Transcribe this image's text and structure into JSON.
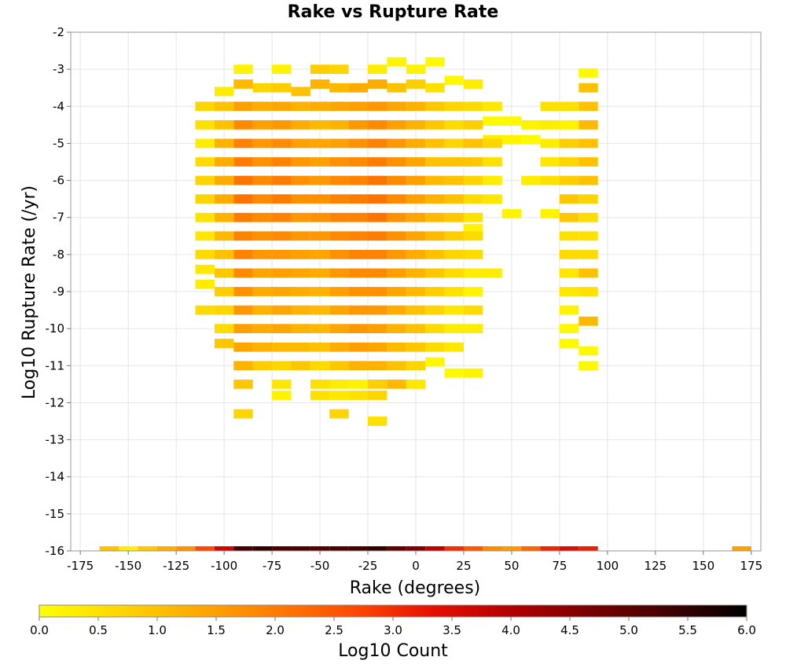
{
  "chart_data": {
    "type": "heatmap",
    "title": "Rake vs Rupture Rate",
    "xlabel": "Rake (degrees)",
    "ylabel": "Log10 Rupture Rate (/yr)",
    "colorbar_label": "Log10 Count",
    "xlim": [
      -180,
      180
    ],
    "ylim": [
      -16,
      -2
    ],
    "xticks": [
      -175,
      -150,
      -125,
      -100,
      -75,
      -50,
      -25,
      0,
      25,
      50,
      75,
      100,
      125,
      150,
      175
    ],
    "yticks": [
      -2,
      -3,
      -4,
      -5,
      -6,
      -7,
      -8,
      -9,
      -10,
      -11,
      -12,
      -13,
      -14,
      -15,
      -16
    ],
    "colorbar_ticks": [
      "0.0",
      "0.5",
      "1.0",
      "1.5",
      "2.0",
      "2.5",
      "3.0",
      "3.5",
      "4.0",
      "4.5",
      "5.0",
      "5.5",
      "6.0"
    ],
    "color_range": [
      0,
      6
    ],
    "colormap": [
      "#ffff00",
      "#ffd700",
      "#ffaa00",
      "#ff7c00",
      "#ff4a00",
      "#e81000",
      "#b30000",
      "#7a0000",
      "#420000",
      "#000000"
    ],
    "grid": true,
    "bin_width_x": 10,
    "bin_height_y": 0.25,
    "bins": [
      [
        -90,
        -3.0,
        0.2
      ],
      [
        -70,
        -3.0,
        0.2
      ],
      [
        -50,
        -3.0,
        0.8
      ],
      [
        -40,
        -3.0,
        0.7
      ],
      [
        -20,
        -3.0,
        0.3
      ],
      [
        -10,
        -2.8,
        0.2
      ],
      [
        0,
        -3.0,
        0.2
      ],
      [
        10,
        -2.8,
        0.1
      ],
      [
        -100,
        -3.6,
        0.3
      ],
      [
        -90,
        -3.4,
        1.1
      ],
      [
        -80,
        -3.5,
        0.7
      ],
      [
        -70,
        -3.5,
        0.8
      ],
      [
        -60,
        -3.6,
        1.0
      ],
      [
        -50,
        -3.4,
        1.2
      ],
      [
        -40,
        -3.5,
        1.1
      ],
      [
        -30,
        -3.5,
        1.3
      ],
      [
        -20,
        -3.4,
        1.3
      ],
      [
        -10,
        -3.5,
        1.0
      ],
      [
        0,
        -3.4,
        0.8
      ],
      [
        10,
        -3.5,
        0.5
      ],
      [
        20,
        -3.3,
        0.1
      ],
      [
        30,
        -3.4,
        0.3
      ],
      [
        90,
        -3.1,
        0.1
      ],
      [
        90,
        -3.5,
        1.0
      ],
      [
        -110,
        -4.0,
        0.7
      ],
      [
        -100,
        -4.0,
        1.0
      ],
      [
        -90,
        -4.0,
        1.5
      ],
      [
        -80,
        -4.0,
        1.3
      ],
      [
        -70,
        -4.0,
        1.4
      ],
      [
        -60,
        -4.0,
        1.2
      ],
      [
        -50,
        -4.0,
        1.3
      ],
      [
        -40,
        -4.0,
        1.4
      ],
      [
        -30,
        -4.0,
        1.5
      ],
      [
        -20,
        -4.0,
        1.6
      ],
      [
        -10,
        -4.0,
        1.4
      ],
      [
        0,
        -4.0,
        1.2
      ],
      [
        10,
        -4.0,
        0.9
      ],
      [
        20,
        -4.0,
        0.7
      ],
      [
        30,
        -4.0,
        0.6
      ],
      [
        40,
        -4.0,
        0.4
      ],
      [
        40,
        -4.4,
        0.1
      ],
      [
        50,
        -4.4,
        0.1
      ],
      [
        70,
        -4.0,
        0.5
      ],
      [
        80,
        -4.0,
        0.5
      ],
      [
        90,
        -4.0,
        1.0
      ],
      [
        -110,
        -4.5,
        0.5
      ],
      [
        -100,
        -4.5,
        1.0
      ],
      [
        -90,
        -4.5,
        1.8
      ],
      [
        -80,
        -4.5,
        1.5
      ],
      [
        -70,
        -4.5,
        1.6
      ],
      [
        -60,
        -4.5,
        1.3
      ],
      [
        -50,
        -4.5,
        1.1
      ],
      [
        -40,
        -4.5,
        1.2
      ],
      [
        -30,
        -4.5,
        1.6
      ],
      [
        -20,
        -4.5,
        1.8
      ],
      [
        -10,
        -4.5,
        1.5
      ],
      [
        0,
        -4.5,
        1.2
      ],
      [
        10,
        -4.5,
        0.9
      ],
      [
        20,
        -4.5,
        0.6
      ],
      [
        30,
        -4.5,
        0.8
      ],
      [
        40,
        -4.9,
        0.3
      ],
      [
        50,
        -4.9,
        0.2
      ],
      [
        60,
        -4.9,
        0.1
      ],
      [
        60,
        -4.5,
        0.2
      ],
      [
        70,
        -4.5,
        0.3
      ],
      [
        80,
        -4.5,
        0.2
      ],
      [
        90,
        -4.5,
        1.1
      ],
      [
        -110,
        -5.0,
        0.3
      ],
      [
        -100,
        -5.0,
        1.2
      ],
      [
        -90,
        -5.0,
        1.9
      ],
      [
        -80,
        -5.0,
        1.6
      ],
      [
        -70,
        -5.0,
        1.8
      ],
      [
        -60,
        -5.0,
        1.5
      ],
      [
        -50,
        -5.0,
        1.4
      ],
      [
        -40,
        -5.0,
        1.5
      ],
      [
        -30,
        -5.0,
        1.7
      ],
      [
        -20,
        -5.0,
        1.9
      ],
      [
        -10,
        -5.0,
        1.6
      ],
      [
        0,
        -5.0,
        1.3
      ],
      [
        10,
        -5.0,
        1.0
      ],
      [
        20,
        -5.0,
        0.7
      ],
      [
        30,
        -5.0,
        1.0
      ],
      [
        40,
        -5.0,
        0.7
      ],
      [
        70,
        -5.0,
        0.3
      ],
      [
        80,
        -5.0,
        0.8
      ],
      [
        90,
        -5.0,
        1.0
      ],
      [
        -110,
        -5.5,
        0.6
      ],
      [
        -100,
        -5.5,
        1.3
      ],
      [
        -90,
        -5.5,
        2.0
      ],
      [
        -80,
        -5.5,
        1.7
      ],
      [
        -70,
        -5.5,
        1.9
      ],
      [
        -60,
        -5.5,
        1.6
      ],
      [
        -50,
        -5.5,
        1.5
      ],
      [
        -40,
        -5.5,
        1.7
      ],
      [
        -30,
        -5.5,
        1.8
      ],
      [
        -20,
        -5.5,
        2.0
      ],
      [
        -10,
        -5.5,
        1.7
      ],
      [
        0,
        -5.5,
        1.4
      ],
      [
        10,
        -5.5,
        1.0
      ],
      [
        20,
        -5.5,
        1.0
      ],
      [
        30,
        -5.5,
        0.9
      ],
      [
        40,
        -5.5,
        0.5
      ],
      [
        70,
        -5.5,
        0.4
      ],
      [
        80,
        -5.5,
        0.7
      ],
      [
        90,
        -5.5,
        1.0
      ],
      [
        -110,
        -6.0,
        0.7
      ],
      [
        -100,
        -6.0,
        1.3
      ],
      [
        -90,
        -6.0,
        2.1
      ],
      [
        -80,
        -6.0,
        1.8
      ],
      [
        -70,
        -6.0,
        2.0
      ],
      [
        -60,
        -6.0,
        1.7
      ],
      [
        -50,
        -6.0,
        1.6
      ],
      [
        -40,
        -6.0,
        1.8
      ],
      [
        -30,
        -6.0,
        1.9
      ],
      [
        -20,
        -6.0,
        2.1
      ],
      [
        -10,
        -6.0,
        1.8
      ],
      [
        0,
        -6.0,
        1.5
      ],
      [
        10,
        -6.0,
        1.1
      ],
      [
        20,
        -6.0,
        1.0
      ],
      [
        30,
        -6.0,
        0.7
      ],
      [
        40,
        -6.0,
        0.3
      ],
      [
        60,
        -6.0,
        0.3
      ],
      [
        70,
        -6.0,
        0.5
      ],
      [
        80,
        -6.0,
        0.8
      ],
      [
        90,
        -6.0,
        1.0
      ],
      [
        -110,
        -6.5,
        0.7
      ],
      [
        -100,
        -6.5,
        1.3
      ],
      [
        -90,
        -6.5,
        2.1
      ],
      [
        -80,
        -6.5,
        1.8
      ],
      [
        -70,
        -6.5,
        2.0
      ],
      [
        -60,
        -6.5,
        1.7
      ],
      [
        -50,
        -6.5,
        1.7
      ],
      [
        -40,
        -6.5,
        1.9
      ],
      [
        -30,
        -6.5,
        2.0
      ],
      [
        -20,
        -6.5,
        2.1
      ],
      [
        -10,
        -6.5,
        1.8
      ],
      [
        0,
        -6.5,
        1.5
      ],
      [
        10,
        -6.5,
        1.2
      ],
      [
        20,
        -6.5,
        1.0
      ],
      [
        30,
        -6.5,
        0.6
      ],
      [
        40,
        -6.5,
        0.4
      ],
      [
        80,
        -6.5,
        0.9
      ],
      [
        90,
        -6.5,
        0.7
      ],
      [
        -110,
        -7.0,
        0.5
      ],
      [
        -100,
        -7.0,
        1.2
      ],
      [
        -90,
        -7.0,
        2.0
      ],
      [
        -80,
        -7.0,
        1.8
      ],
      [
        -70,
        -7.0,
        1.9
      ],
      [
        -60,
        -7.0,
        1.6
      ],
      [
        -50,
        -7.0,
        1.7
      ],
      [
        -40,
        -7.0,
        1.9
      ],
      [
        -30,
        -7.0,
        1.9
      ],
      [
        -20,
        -7.0,
        2.1
      ],
      [
        -10,
        -7.0,
        1.7
      ],
      [
        0,
        -7.0,
        1.4
      ],
      [
        10,
        -7.0,
        1.1
      ],
      [
        20,
        -7.0,
        0.9
      ],
      [
        30,
        -7.0,
        0.5
      ],
      [
        30,
        -7.3,
        0.2
      ],
      [
        50,
        -6.9,
        0.2
      ],
      [
        70,
        -6.9,
        0.2
      ],
      [
        80,
        -7.0,
        0.9
      ],
      [
        90,
        -7.0,
        0.6
      ],
      [
        -110,
        -7.5,
        0.4
      ],
      [
        -100,
        -7.5,
        1.1
      ],
      [
        -90,
        -7.5,
        1.9
      ],
      [
        -80,
        -7.5,
        1.7
      ],
      [
        -70,
        -7.5,
        1.8
      ],
      [
        -60,
        -7.5,
        1.6
      ],
      [
        -50,
        -7.5,
        1.6
      ],
      [
        -40,
        -7.5,
        1.8
      ],
      [
        -30,
        -7.5,
        1.9
      ],
      [
        -20,
        -7.5,
        2.0
      ],
      [
        -10,
        -7.5,
        1.7
      ],
      [
        0,
        -7.5,
        1.4
      ],
      [
        10,
        -7.5,
        1.1
      ],
      [
        20,
        -7.5,
        0.8
      ],
      [
        30,
        -7.5,
        0.6
      ],
      [
        80,
        -7.5,
        0.5
      ],
      [
        90,
        -7.5,
        0.5
      ],
      [
        -110,
        -8.0,
        0.6
      ],
      [
        -100,
        -8.0,
        1.0
      ],
      [
        -90,
        -8.0,
        1.9
      ],
      [
        -80,
        -8.0,
        1.6
      ],
      [
        -70,
        -8.0,
        1.6
      ],
      [
        -60,
        -8.0,
        1.5
      ],
      [
        -50,
        -8.0,
        1.4
      ],
      [
        -40,
        -8.0,
        1.7
      ],
      [
        -30,
        -8.0,
        1.9
      ],
      [
        -20,
        -8.0,
        1.9
      ],
      [
        -10,
        -8.0,
        1.6
      ],
      [
        0,
        -8.0,
        1.3
      ],
      [
        10,
        -8.0,
        1.0
      ],
      [
        20,
        -8.0,
        0.7
      ],
      [
        30,
        -8.0,
        0.6
      ],
      [
        80,
        -8.0,
        0.6
      ],
      [
        90,
        -8.0,
        0.6
      ],
      [
        -110,
        -8.4,
        0.4
      ],
      [
        -100,
        -8.5,
        0.9
      ],
      [
        -90,
        -8.5,
        1.8
      ],
      [
        -80,
        -8.5,
        1.4
      ],
      [
        -70,
        -8.5,
        1.5
      ],
      [
        -60,
        -8.5,
        1.4
      ],
      [
        -50,
        -8.5,
        1.3
      ],
      [
        -40,
        -8.5,
        1.6
      ],
      [
        -30,
        -8.5,
        1.8
      ],
      [
        -20,
        -8.5,
        1.8
      ],
      [
        -10,
        -8.5,
        1.5
      ],
      [
        0,
        -8.5,
        1.2
      ],
      [
        10,
        -8.5,
        0.9
      ],
      [
        20,
        -8.5,
        0.6
      ],
      [
        30,
        -8.5,
        0.3
      ],
      [
        40,
        -8.5,
        0.3
      ],
      [
        80,
        -8.5,
        0.4
      ],
      [
        90,
        -8.5,
        1.0
      ],
      [
        -110,
        -8.8,
        0.3
      ],
      [
        -100,
        -9.0,
        0.8
      ],
      [
        -90,
        -9.0,
        1.7
      ],
      [
        -80,
        -9.0,
        1.3
      ],
      [
        -70,
        -9.0,
        1.4
      ],
      [
        -60,
        -9.0,
        1.3
      ],
      [
        -50,
        -9.0,
        1.2
      ],
      [
        -40,
        -9.0,
        1.5
      ],
      [
        -30,
        -9.0,
        1.7
      ],
      [
        -20,
        -9.0,
        1.7
      ],
      [
        -10,
        -9.0,
        1.4
      ],
      [
        0,
        -9.0,
        1.1
      ],
      [
        10,
        -9.0,
        0.8
      ],
      [
        20,
        -9.0,
        0.5
      ],
      [
        30,
        -9.0,
        0.2
      ],
      [
        80,
        -9.0,
        0.4
      ],
      [
        90,
        -9.0,
        0.5
      ],
      [
        -110,
        -9.5,
        0.6
      ],
      [
        -100,
        -9.5,
        0.7
      ],
      [
        -90,
        -9.5,
        1.6
      ],
      [
        -80,
        -9.5,
        1.2
      ],
      [
        -70,
        -9.5,
        1.4
      ],
      [
        -60,
        -9.5,
        1.2
      ],
      [
        -50,
        -9.5,
        1.1
      ],
      [
        -40,
        -9.5,
        1.4
      ],
      [
        -30,
        -9.5,
        1.6
      ],
      [
        -20,
        -9.5,
        1.6
      ],
      [
        -10,
        -9.5,
        1.3
      ],
      [
        0,
        -9.5,
        1.0
      ],
      [
        10,
        -9.5,
        0.7
      ],
      [
        20,
        -9.5,
        0.4
      ],
      [
        30,
        -9.5,
        0.6
      ],
      [
        80,
        -9.5,
        0.2
      ],
      [
        90,
        -9.8,
        1.1
      ],
      [
        -100,
        -10.0,
        0.6
      ],
      [
        -90,
        -10.0,
        1.5
      ],
      [
        -80,
        -10.0,
        1.3
      ],
      [
        -70,
        -10.0,
        1.4
      ],
      [
        -60,
        -10.0,
        1.2
      ],
      [
        -50,
        -10.0,
        1.1
      ],
      [
        -40,
        -10.0,
        1.4
      ],
      [
        -30,
        -10.0,
        1.6
      ],
      [
        -20,
        -10.0,
        1.5
      ],
      [
        -10,
        -10.0,
        1.2
      ],
      [
        0,
        -10.0,
        1.0
      ],
      [
        10,
        -10.0,
        0.6
      ],
      [
        20,
        -10.0,
        0.3
      ],
      [
        30,
        -10.0,
        0.3
      ],
      [
        80,
        -10.0,
        0.1
      ],
      [
        -100,
        -10.4,
        0.9
      ],
      [
        -90,
        -10.5,
        1.4
      ],
      [
        -80,
        -10.5,
        1.2
      ],
      [
        -70,
        -10.5,
        1.1
      ],
      [
        -60,
        -10.5,
        1.1
      ],
      [
        -50,
        -10.5,
        1.0
      ],
      [
        -40,
        -10.5,
        1.3
      ],
      [
        -30,
        -10.5,
        1.5
      ],
      [
        -20,
        -10.5,
        1.4
      ],
      [
        -10,
        -10.5,
        1.1
      ],
      [
        0,
        -10.5,
        0.9
      ],
      [
        10,
        -10.5,
        0.6
      ],
      [
        20,
        -10.5,
        0.4
      ],
      [
        80,
        -10.4,
        0.1
      ],
      [
        90,
        -10.6,
        0.1
      ],
      [
        -90,
        -11.0,
        1.2
      ],
      [
        -80,
        -11.0,
        0.8
      ],
      [
        -70,
        -11.0,
        0.7
      ],
      [
        -60,
        -11.0,
        0.9
      ],
      [
        -50,
        -11.0,
        0.6
      ],
      [
        -40,
        -11.0,
        0.9
      ],
      [
        -30,
        -11.0,
        1.2
      ],
      [
        -20,
        -11.0,
        1.2
      ],
      [
        -10,
        -11.0,
        1.0
      ],
      [
        0,
        -11.0,
        0.7
      ],
      [
        10,
        -10.9,
        0.1
      ],
      [
        20,
        -11.2,
        0.1
      ],
      [
        30,
        -11.2,
        0.2
      ],
      [
        90,
        -11.0,
        0.1
      ],
      [
        -90,
        -11.5,
        0.9
      ],
      [
        -70,
        -11.5,
        0.4
      ],
      [
        -50,
        -11.5,
        0.5
      ],
      [
        -40,
        -11.5,
        0.3
      ],
      [
        -30,
        -11.5,
        0.2
      ],
      [
        -20,
        -11.5,
        0.8
      ],
      [
        -10,
        -11.5,
        1.1
      ],
      [
        0,
        -11.5,
        0.4
      ],
      [
        -70,
        -11.8,
        0.2
      ],
      [
        -50,
        -11.8,
        0.5
      ],
      [
        -40,
        -11.8,
        0.4
      ],
      [
        -30,
        -11.8,
        0.5
      ],
      [
        -20,
        -11.8,
        0.7
      ],
      [
        -90,
        -12.3,
        0.7
      ],
      [
        -40,
        -12.3,
        0.7
      ],
      [
        -20,
        -12.5,
        0.5
      ],
      [
        -160,
        -16.0,
        1.0
      ],
      [
        -150,
        -16.0,
        0.3
      ],
      [
        -140,
        -16.0,
        0.9
      ],
      [
        -130,
        -16.0,
        1.3
      ],
      [
        -120,
        -16.0,
        1.7
      ],
      [
        -110,
        -16.0,
        2.7
      ],
      [
        -100,
        -16.0,
        3.7
      ],
      [
        -90,
        -16.0,
        5.3
      ],
      [
        -80,
        -16.0,
        5.5
      ],
      [
        -70,
        -16.0,
        5.2
      ],
      [
        -60,
        -16.0,
        5.2
      ],
      [
        -50,
        -16.0,
        5.1
      ],
      [
        -40,
        -16.0,
        5.2
      ],
      [
        -30,
        -16.0,
        5.3
      ],
      [
        -20,
        -16.0,
        5.5
      ],
      [
        -10,
        -16.0,
        5.0
      ],
      [
        0,
        -16.0,
        4.6
      ],
      [
        10,
        -16.0,
        3.9
      ],
      [
        20,
        -16.0,
        3.0
      ],
      [
        30,
        -16.0,
        2.5
      ],
      [
        40,
        -16.0,
        1.8
      ],
      [
        50,
        -16.0,
        1.6
      ],
      [
        60,
        -16.0,
        2.3
      ],
      [
        70,
        -16.0,
        3.1
      ],
      [
        80,
        -16.0,
        3.5
      ],
      [
        90,
        -16.0,
        3.2
      ],
      [
        170,
        -16.0,
        1.5
      ]
    ]
  }
}
